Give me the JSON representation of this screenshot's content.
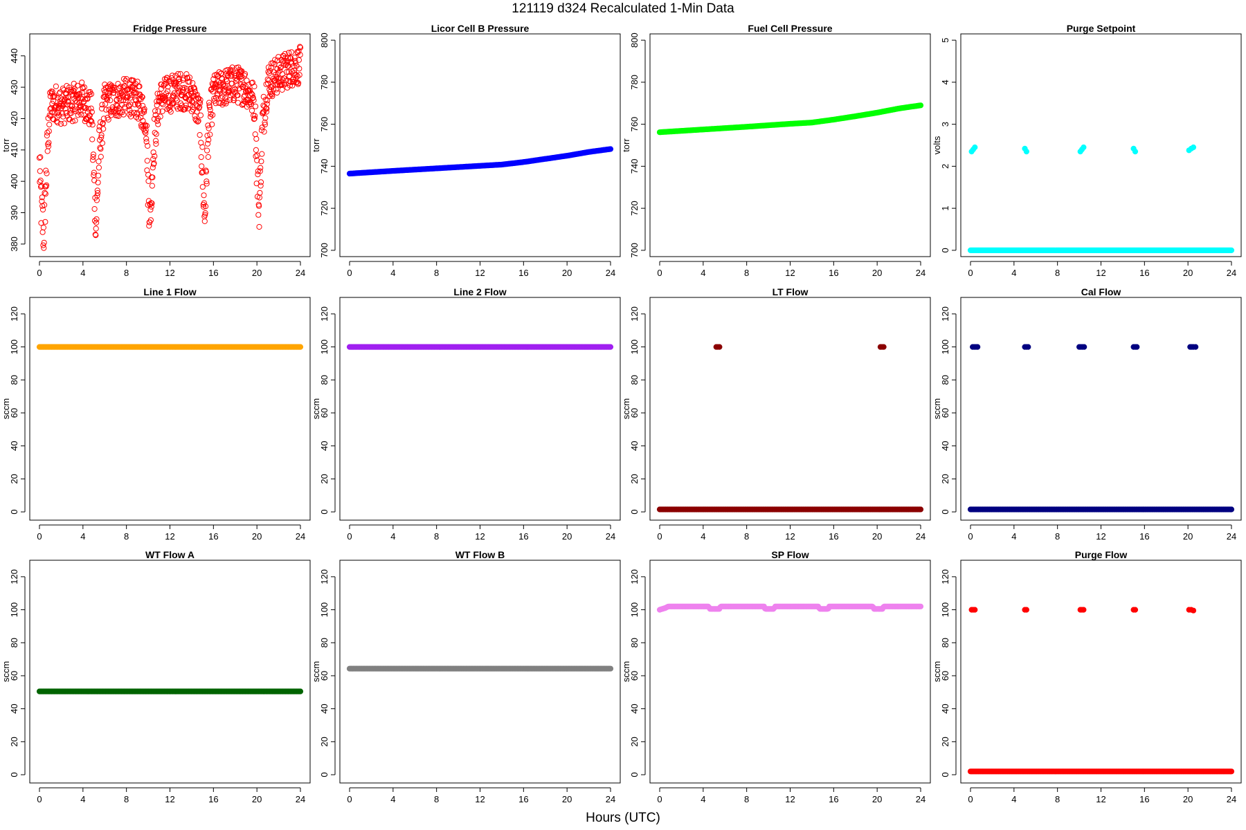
{
  "figure": {
    "title": "121119   d324   Recalculated 1-Min Data",
    "xlabel": "Hours (UTC)"
  },
  "x_axis": {
    "range": [
      0,
      24
    ],
    "ticks": [
      0,
      4,
      8,
      12,
      16,
      20,
      24
    ]
  },
  "chart_data": [
    {
      "type": "scatter",
      "title": "Fridge Pressure",
      "ylabel": "torr",
      "color": "#ff0000",
      "marker": "open-circle",
      "ylim": [
        376,
        447
      ],
      "yticks": [
        380,
        390,
        400,
        410,
        420,
        430,
        440
      ],
      "x": [
        0.0,
        0.2,
        0.4,
        0.6,
        0.8,
        1.0,
        1.5,
        2.0,
        3.0,
        4.0,
        4.8,
        5.0,
        5.2,
        5.5,
        6.0,
        7.0,
        8.0,
        9.0,
        9.8,
        10.0,
        10.2,
        10.5,
        11.0,
        12.0,
        13.0,
        14.0,
        14.8,
        15.0,
        15.2,
        15.5,
        16.0,
        17.0,
        18.0,
        19.0,
        19.8,
        20.0,
        20.2,
        20.5,
        21.0,
        22.0,
        23.0,
        24.0
      ],
      "values": [
        405,
        390,
        383,
        400,
        415,
        424,
        425,
        424,
        425,
        426,
        422,
        400,
        385,
        410,
        425,
        426,
        427,
        426,
        420,
        398,
        388,
        412,
        426,
        428,
        429,
        428,
        420,
        402,
        388,
        415,
        428,
        430,
        431,
        430,
        425,
        405,
        390,
        418,
        432,
        434,
        436,
        437
      ],
      "spread": [
        8,
        10,
        8,
        10,
        8,
        6,
        6,
        6,
        6,
        6,
        6,
        10,
        5,
        8,
        6,
        6,
        6,
        6,
        6,
        10,
        6,
        8,
        6,
        6,
        6,
        6,
        6,
        10,
        6,
        8,
        6,
        6,
        6,
        6,
        6,
        10,
        6,
        8,
        6,
        6,
        6,
        6
      ]
    },
    {
      "type": "line",
      "title": "Licor Cell B Pressure",
      "ylabel": "torr",
      "color": "#0000ff",
      "marker": "filled-circle",
      "ylim": [
        697,
        803
      ],
      "yticks": [
        700,
        720,
        740,
        760,
        780,
        800
      ],
      "x": [
        0,
        4,
        8,
        12,
        14,
        16,
        18,
        20,
        22,
        24
      ],
      "values": [
        736.5,
        737.8,
        739.0,
        740.2,
        740.8,
        742.0,
        743.5,
        745.0,
        746.8,
        748.2
      ]
    },
    {
      "type": "line",
      "title": "Fuel Cell Pressure",
      "ylabel": "torr",
      "color": "#00ff00",
      "marker": "filled-circle",
      "ylim": [
        697,
        803
      ],
      "yticks": [
        700,
        720,
        740,
        760,
        780,
        800
      ],
      "x": [
        0,
        4,
        8,
        12,
        14,
        16,
        18,
        20,
        22,
        24
      ],
      "values": [
        756.2,
        757.5,
        758.8,
        760.2,
        760.8,
        762.2,
        763.8,
        765.5,
        767.5,
        769.0
      ]
    },
    {
      "type": "scatter",
      "title": "Purge Setpoint",
      "ylabel": "volts",
      "color": "#00ffff",
      "marker": "filled-circle",
      "ylim": [
        -0.15,
        5.15
      ],
      "yticks": [
        0,
        1,
        2,
        3,
        4,
        5
      ],
      "baseline": {
        "from": 0,
        "to": 24,
        "value": 0
      },
      "clusters": [
        {
          "x": [
            0.1,
            0.25,
            0.4
          ],
          "values": [
            2.35,
            2.4,
            2.45
          ]
        },
        {
          "x": [
            5.0,
            5.15
          ],
          "values": [
            2.42,
            2.35
          ]
        },
        {
          "x": [
            10.1,
            10.25,
            10.4
          ],
          "values": [
            2.35,
            2.4,
            2.45
          ]
        },
        {
          "x": [
            15.0,
            15.15
          ],
          "values": [
            2.42,
            2.35
          ]
        },
        {
          "x": [
            20.1,
            20.3,
            20.5
          ],
          "values": [
            2.38,
            2.42,
            2.45
          ]
        }
      ]
    },
    {
      "type": "line",
      "title": "Line 1 Flow",
      "ylabel": "sccm",
      "color": "#ffa500",
      "marker": "filled-circle",
      "ylim": [
        -5,
        130
      ],
      "yticks": [
        0,
        20,
        40,
        60,
        80,
        100,
        120
      ],
      "x": [
        0,
        24
      ],
      "values": [
        100,
        100
      ]
    },
    {
      "type": "line",
      "title": "Line 2 Flow",
      "ylabel": "sccm",
      "color": "#a020f0",
      "marker": "filled-circle",
      "ylim": [
        -5,
        130
      ],
      "yticks": [
        0,
        20,
        40,
        60,
        80,
        100,
        120
      ],
      "x": [
        0,
        24
      ],
      "values": [
        100,
        100
      ]
    },
    {
      "type": "scatter",
      "title": "LT Flow",
      "ylabel": "sccm",
      "color": "#8b0000",
      "marker": "filled-circle",
      "ylim": [
        -5,
        130
      ],
      "yticks": [
        0,
        20,
        40,
        60,
        80,
        100,
        120
      ],
      "baseline": {
        "from": 0,
        "to": 24,
        "value": 1.5
      },
      "clusters": [
        {
          "x": [
            5.2,
            5.35,
            5.5
          ],
          "values": [
            100,
            100,
            100
          ]
        },
        {
          "x": [
            20.3,
            20.45,
            20.6
          ],
          "values": [
            100,
            100,
            100
          ]
        }
      ]
    },
    {
      "type": "scatter",
      "title": "Cal Flow",
      "ylabel": "sccm",
      "color": "#000080",
      "marker": "filled-circle",
      "ylim": [
        -5,
        130
      ],
      "yticks": [
        0,
        20,
        40,
        60,
        80,
        100,
        120
      ],
      "baseline": {
        "from": 0,
        "to": 24,
        "value": 1.5
      },
      "clusters": [
        {
          "x": [
            0.2,
            0.35,
            0.5,
            0.65
          ],
          "values": [
            100,
            100,
            100,
            100
          ]
        },
        {
          "x": [
            5.0,
            5.15,
            5.3
          ],
          "values": [
            100,
            100,
            100
          ]
        },
        {
          "x": [
            10.0,
            10.15,
            10.3,
            10.45
          ],
          "values": [
            100,
            100,
            100,
            100
          ]
        },
        {
          "x": [
            15.0,
            15.15,
            15.3
          ],
          "values": [
            100,
            100,
            100
          ]
        },
        {
          "x": [
            20.2,
            20.35,
            20.5,
            20.7
          ],
          "values": [
            100,
            100,
            100,
            100
          ]
        }
      ]
    },
    {
      "type": "line",
      "title": "WT Flow A",
      "ylabel": "sccm",
      "color": "#006400",
      "marker": "filled-circle",
      "ylim": [
        -5,
        130
      ],
      "yticks": [
        0,
        20,
        40,
        60,
        80,
        100,
        120
      ],
      "x": [
        0,
        24
      ],
      "values": [
        50.5,
        50.5
      ]
    },
    {
      "type": "line",
      "title": "WT Flow B",
      "ylabel": "sccm",
      "color": "#808080",
      "marker": "filled-circle",
      "ylim": [
        -5,
        130
      ],
      "yticks": [
        0,
        20,
        40,
        60,
        80,
        100,
        120
      ],
      "x": [
        0,
        24
      ],
      "values": [
        64.3,
        64.3
      ]
    },
    {
      "type": "line",
      "title": "SP Flow",
      "ylabel": "sccm",
      "color": "#ee82ee",
      "marker": "filled-circle",
      "ylim": [
        -5,
        130
      ],
      "yticks": [
        0,
        20,
        40,
        60,
        80,
        100,
        120
      ],
      "x": [
        0,
        0.5,
        0.8,
        4.5,
        4.6,
        5.5,
        5.6,
        9.6,
        9.7,
        10.5,
        10.6,
        14.6,
        14.7,
        15.5,
        15.6,
        19.6,
        19.7,
        20.5,
        20.6,
        24
      ],
      "values": [
        100,
        101,
        102,
        102,
        100.5,
        100.5,
        102,
        102,
        100.5,
        100.5,
        102,
        102,
        100.5,
        100.5,
        102,
        102,
        100.5,
        100.5,
        102,
        102
      ]
    },
    {
      "type": "scatter",
      "title": "Purge Flow",
      "ylabel": "sccm",
      "color": "#ff0000",
      "marker": "filled-circle",
      "ylim": [
        -5,
        130
      ],
      "yticks": [
        0,
        20,
        40,
        60,
        80,
        100,
        120
      ],
      "baseline": {
        "from": 0,
        "to": 24,
        "value": 2
      },
      "clusters": [
        {
          "x": [
            0.1,
            0.25,
            0.4
          ],
          "values": [
            100,
            100,
            100
          ]
        },
        {
          "x": [
            5.0,
            5.15
          ],
          "values": [
            100,
            100
          ]
        },
        {
          "x": [
            10.1,
            10.25,
            10.4
          ],
          "values": [
            100,
            100,
            100
          ]
        },
        {
          "x": [
            15.0,
            15.15
          ],
          "values": [
            100,
            100
          ]
        },
        {
          "x": [
            20.1,
            20.3,
            20.5
          ],
          "values": [
            100,
            100,
            99.5
          ]
        }
      ]
    }
  ]
}
